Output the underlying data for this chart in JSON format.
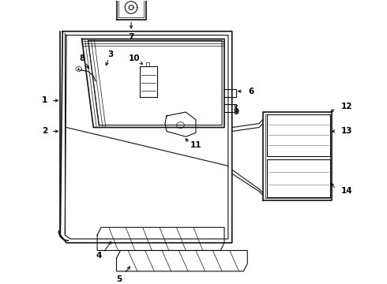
{
  "bg_color": "#ffffff",
  "line_color": "#111111",
  "label_color": "#000000",
  "lw_main": 1.2,
  "lw_med": 0.8,
  "lw_thin": 0.5,
  "label_fontsize": 7.5
}
